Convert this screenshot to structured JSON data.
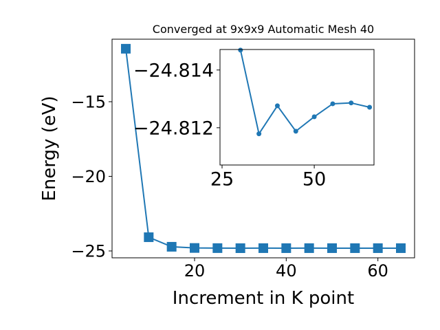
{
  "chart_data": [
    {
      "type": "line",
      "title": "Converged at 9x9x9 Automatic Mesh 40",
      "x_label": "Increment in K point",
      "y_label": "Energy (eV)",
      "x": [
        5,
        10,
        15,
        20,
        25,
        30,
        35,
        40,
        45,
        50,
        55,
        60,
        65
      ],
      "series": [
        {
          "name": "Energy",
          "color": "#1f77b4",
          "marker": "square",
          "values": [
            -11.45,
            -24.08,
            -24.72,
            -24.8,
            -24.81,
            -24.81469,
            -24.81179,
            -24.81276,
            -24.81188,
            -24.81238,
            -24.81283,
            -24.81286,
            -24.81271
          ]
        }
      ],
      "xlim": [
        2,
        68
      ],
      "xticks": [
        20,
        40,
        60
      ],
      "ylim": [
        -25.46,
        -10.81
      ],
      "yticks": [
        {
          "value": -25,
          "label": "−25"
        },
        {
          "value": -20,
          "label": "−20"
        },
        {
          "value": -15,
          "label": "−15"
        }
      ]
    },
    {
      "type": "line",
      "x": [
        30,
        35,
        40,
        45,
        50,
        55,
        60,
        65
      ],
      "series": [
        {
          "name": "Energy",
          "color": "#1f77b4",
          "marker": "circle",
          "values": [
            -24.81469,
            -24.81179,
            -24.81276,
            -24.81188,
            -24.81238,
            -24.81283,
            -24.81286,
            -24.81271
          ]
        }
      ],
      "xlim": [
        24.44,
        66.2
      ],
      "xticks": [
        25,
        50
      ],
      "ylim": [
        -24.81071,
        -24.81471
      ],
      "yticks": [
        {
          "value": -24.814,
          "label": "−24.814"
        },
        {
          "value": -24.812,
          "label": "−24.812"
        }
      ]
    }
  ]
}
